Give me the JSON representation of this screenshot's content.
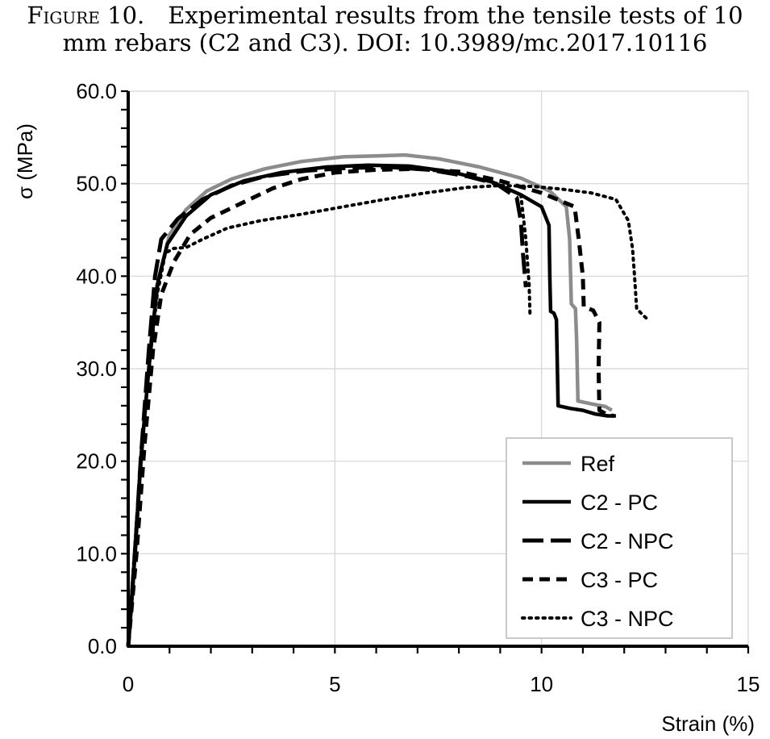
{
  "caption": {
    "label": "Figure 10.",
    "line1": "Experimental results from the tensile tests of 10",
    "line2": "mm rebars (C2 and C3). DOI: 10.3989/mc.2017.10116"
  },
  "chart_data": {
    "type": "line",
    "xlabel": "Strain (%)",
    "ylabel": "σ (MPa)",
    "xlim": [
      0,
      15
    ],
    "ylim": [
      0,
      60
    ],
    "xticks": [
      "0",
      "5",
      "10",
      "15"
    ],
    "yticks": [
      "0.0",
      "10.0",
      "20.0",
      "30.0",
      "40.0",
      "50.0",
      "60.0"
    ],
    "grid": true,
    "legend_position": "bottom-right",
    "series": [
      {
        "name": "Ref",
        "color": "#8c8c8c",
        "style": "solid",
        "points": [
          [
            0,
            0
          ],
          [
            0.15,
            10
          ],
          [
            0.35,
            22
          ],
          [
            0.55,
            33
          ],
          [
            0.75,
            40
          ],
          [
            1.0,
            44.5
          ],
          [
            1.4,
            47.2
          ],
          [
            1.9,
            49.2
          ],
          [
            2.5,
            50.5
          ],
          [
            3.3,
            51.6
          ],
          [
            4.2,
            52.4
          ],
          [
            5.2,
            52.9
          ],
          [
            6.0,
            53.0
          ],
          [
            6.7,
            53.1
          ],
          [
            7.5,
            52.7
          ],
          [
            8.5,
            51.8
          ],
          [
            9.5,
            50.6
          ],
          [
            10.2,
            49.2
          ],
          [
            10.6,
            47.5
          ],
          [
            10.68,
            44
          ],
          [
            10.72,
            37
          ],
          [
            10.82,
            36.5
          ],
          [
            10.85,
            33
          ],
          [
            10.88,
            26.5
          ],
          [
            11.2,
            26.2
          ],
          [
            11.55,
            25.9
          ],
          [
            11.7,
            25.5
          ]
        ]
      },
      {
        "name": "C2 - PC",
        "color": "#000000",
        "style": "solid",
        "points": [
          [
            0,
            0
          ],
          [
            0.15,
            9
          ],
          [
            0.3,
            20
          ],
          [
            0.5,
            30
          ],
          [
            0.7,
            39
          ],
          [
            0.95,
            43.5
          ],
          [
            1.4,
            46.5
          ],
          [
            2.0,
            48.8
          ],
          [
            2.8,
            50.3
          ],
          [
            3.7,
            51.2
          ],
          [
            4.8,
            51.8
          ],
          [
            5.8,
            52.0
          ],
          [
            6.8,
            51.9
          ],
          [
            7.8,
            51.3
          ],
          [
            8.8,
            50.2
          ],
          [
            9.5,
            48.8
          ],
          [
            10.0,
            47.5
          ],
          [
            10.18,
            45.5
          ],
          [
            10.2,
            40
          ],
          [
            10.22,
            36.2
          ],
          [
            10.3,
            36.0
          ],
          [
            10.36,
            35.3
          ],
          [
            10.4,
            26.0
          ],
          [
            10.7,
            25.7
          ],
          [
            11.0,
            25.5
          ],
          [
            11.3,
            25.1
          ],
          [
            11.6,
            24.9
          ],
          [
            11.8,
            24.9
          ]
        ]
      },
      {
        "name": "C2 - NPC",
        "color": "#000000",
        "style": "longdash",
        "points": [
          [
            0,
            0
          ],
          [
            0.15,
            9
          ],
          [
            0.3,
            20
          ],
          [
            0.5,
            32
          ],
          [
            0.65,
            40
          ],
          [
            0.8,
            44
          ],
          [
            1.2,
            46.2
          ],
          [
            1.8,
            48.3
          ],
          [
            2.5,
            49.8
          ],
          [
            3.3,
            50.8
          ],
          [
            4.3,
            51.4
          ],
          [
            5.3,
            51.7
          ],
          [
            6.3,
            51.8
          ],
          [
            7.3,
            51.5
          ],
          [
            8.2,
            50.8
          ],
          [
            8.9,
            50.0
          ],
          [
            9.4,
            48.5
          ],
          [
            9.5,
            46.0
          ],
          [
            9.55,
            42.5
          ],
          [
            9.62,
            38.8
          ]
        ]
      },
      {
        "name": "C3 - PC",
        "color": "#000000",
        "style": "dash",
        "points": [
          [
            0,
            0
          ],
          [
            0.2,
            10
          ],
          [
            0.4,
            22
          ],
          [
            0.6,
            32
          ],
          [
            0.8,
            38
          ],
          [
            1.1,
            41.5
          ],
          [
            1.5,
            44.5
          ],
          [
            2.0,
            46.3
          ],
          [
            2.7,
            47.8
          ],
          [
            3.5,
            49.5
          ],
          [
            4.2,
            50.5
          ],
          [
            5.0,
            51.2
          ],
          [
            6.0,
            51.5
          ],
          [
            7.0,
            51.6
          ],
          [
            8.0,
            51.3
          ],
          [
            9.0,
            50.3
          ],
          [
            10.0,
            49.0
          ],
          [
            10.8,
            47.5
          ],
          [
            10.9,
            44
          ],
          [
            11.0,
            40
          ],
          [
            11.02,
            36.7
          ],
          [
            11.25,
            36.3
          ],
          [
            11.4,
            35.0
          ],
          [
            11.38,
            30
          ],
          [
            11.4,
            25.5
          ],
          [
            11.6,
            25.0
          ],
          [
            11.75,
            24.9
          ]
        ]
      },
      {
        "name": "C3 - NPC",
        "color": "#000000",
        "style": "dot",
        "points": [
          [
            0,
            0
          ],
          [
            0.15,
            10
          ],
          [
            0.3,
            20
          ],
          [
            0.5,
            30
          ],
          [
            0.7,
            38
          ],
          [
            0.9,
            42.5
          ],
          [
            1.1,
            43.0
          ],
          [
            1.4,
            43.1
          ],
          [
            1.8,
            44.0
          ],
          [
            2.4,
            45.2
          ],
          [
            3.2,
            46.0
          ],
          [
            4.2,
            46.7
          ],
          [
            5.2,
            47.5
          ],
          [
            6.2,
            48.3
          ],
          [
            7.2,
            49.0
          ],
          [
            8.2,
            49.6
          ],
          [
            9.0,
            49.8
          ],
          [
            9.8,
            49.7
          ],
          [
            10.5,
            49.4
          ],
          [
            11.2,
            49.0
          ],
          [
            11.8,
            48.3
          ],
          [
            12.1,
            46.0
          ],
          [
            12.2,
            43
          ],
          [
            12.25,
            40
          ],
          [
            12.3,
            36.5
          ],
          [
            12.45,
            35.8
          ],
          [
            12.6,
            35.2
          ]
        ]
      },
      {
        "name": "",
        "color": "#000000",
        "style": "dot",
        "points": [
          [
            9.5,
            48.8
          ],
          [
            9.62,
            44
          ],
          [
            9.7,
            39
          ],
          [
            9.72,
            36.0
          ]
        ]
      }
    ]
  }
}
